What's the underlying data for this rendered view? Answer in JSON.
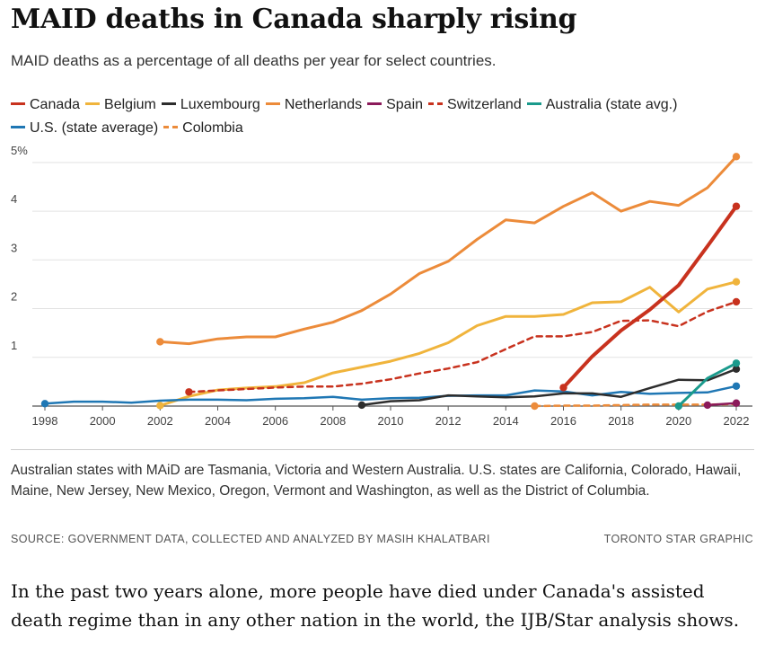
{
  "title": "MAID deaths in Canada sharply rising",
  "subtitle": "MAID deaths as a percentage of all deaths per year for select countries.",
  "legend": [
    {
      "label": "Canada",
      "color": "#c8321e",
      "dashed": false
    },
    {
      "label": "Belgium",
      "color": "#f0b43c",
      "dashed": false
    },
    {
      "label": "Luxembourg",
      "color": "#2d2d2d",
      "dashed": false
    },
    {
      "label": "Netherlands",
      "color": "#ec8b3a",
      "dashed": false
    },
    {
      "label": "Spain",
      "color": "#8b1a5a",
      "dashed": false
    },
    {
      "label": "Switzerland",
      "color": "#c8321e",
      "dashed": true
    },
    {
      "label": "Australia (state avg.)",
      "color": "#1a9a8c",
      "dashed": false
    },
    {
      "label": "U.S. (state average)",
      "color": "#1f77b4",
      "dashed": false
    },
    {
      "label": "Colombia",
      "color": "#ec8b3a",
      "dashed": true
    }
  ],
  "chart_data": {
    "type": "line",
    "xlim": [
      1998,
      2022
    ],
    "ylim": [
      0,
      5.2
    ],
    "x_ticks": [
      "1998",
      "2000",
      "2002",
      "2004",
      "2006",
      "2008",
      "2010",
      "2012",
      "2014",
      "2016",
      "2018",
      "2020",
      "2022"
    ],
    "y_ticks": [
      {
        "value": 1,
        "label": "1"
      },
      {
        "value": 2,
        "label": "2"
      },
      {
        "value": 3,
        "label": "3"
      },
      {
        "value": 4,
        "label": "4"
      },
      {
        "value": 5,
        "label": "5%"
      }
    ],
    "grid": true,
    "series": [
      {
        "name": "Netherlands",
        "color": "#ec8b3a",
        "dashed": false,
        "width": 3,
        "x": [
          2002,
          2003,
          2004,
          2005,
          2006,
          2007,
          2008,
          2009,
          2010,
          2011,
          2012,
          2013,
          2014,
          2015,
          2016,
          2017,
          2018,
          2019,
          2020,
          2021,
          2022
        ],
        "y": [
          1.32,
          1.28,
          1.38,
          1.42,
          1.42,
          1.58,
          1.72,
          1.96,
          2.3,
          2.72,
          2.97,
          3.42,
          3.82,
          3.76,
          4.1,
          4.38,
          4.0,
          4.2,
          4.12,
          4.48,
          5.12
        ],
        "markers": [
          0,
          20
        ]
      },
      {
        "name": "Belgium",
        "color": "#f0b43c",
        "dashed": false,
        "width": 3,
        "x": [
          2002,
          2003,
          2004,
          2005,
          2006,
          2007,
          2008,
          2009,
          2010,
          2011,
          2012,
          2013,
          2014,
          2015,
          2016,
          2017,
          2018,
          2019,
          2020,
          2021,
          2022
        ],
        "y": [
          0.01,
          0.2,
          0.33,
          0.37,
          0.4,
          0.48,
          0.68,
          0.8,
          0.92,
          1.08,
          1.3,
          1.65,
          1.84,
          1.84,
          1.88,
          2.12,
          2.14,
          2.44,
          1.93,
          2.4,
          2.55
        ],
        "markers": [
          0,
          20
        ]
      },
      {
        "name": "Switzerland",
        "color": "#c8321e",
        "dashed": true,
        "width": 2.5,
        "x": [
          2003,
          2004,
          2005,
          2006,
          2007,
          2008,
          2009,
          2010,
          2011,
          2012,
          2013,
          2014,
          2015,
          2016,
          2017,
          2018,
          2019,
          2020,
          2021,
          2022
        ],
        "y": [
          0.29,
          0.32,
          0.35,
          0.38,
          0.4,
          0.4,
          0.46,
          0.55,
          0.67,
          0.77,
          0.9,
          1.17,
          1.43,
          1.43,
          1.52,
          1.75,
          1.76,
          1.64,
          1.94,
          2.14
        ],
        "markers": [
          0,
          19
        ]
      },
      {
        "name": "U.S. (state average)",
        "color": "#1f77b4",
        "dashed": false,
        "width": 2.5,
        "x": [
          1998,
          1999,
          2000,
          2001,
          2002,
          2003,
          2004,
          2005,
          2006,
          2007,
          2008,
          2009,
          2010,
          2011,
          2012,
          2013,
          2014,
          2015,
          2016,
          2017,
          2018,
          2019,
          2020,
          2021,
          2022
        ],
        "y": [
          0.05,
          0.09,
          0.09,
          0.07,
          0.11,
          0.13,
          0.13,
          0.12,
          0.15,
          0.16,
          0.19,
          0.13,
          0.16,
          0.17,
          0.21,
          0.22,
          0.22,
          0.32,
          0.3,
          0.22,
          0.29,
          0.25,
          0.27,
          0.28,
          0.41
        ],
        "markers": [
          0,
          24
        ]
      },
      {
        "name": "Luxembourg",
        "color": "#2d2d2d",
        "dashed": false,
        "width": 2.5,
        "x": [
          2009,
          2010,
          2011,
          2012,
          2013,
          2014,
          2015,
          2016,
          2017,
          2018,
          2019,
          2020,
          2021,
          2022
        ],
        "y": [
          0.02,
          0.1,
          0.12,
          0.22,
          0.2,
          0.18,
          0.2,
          0.26,
          0.26,
          0.19,
          0.37,
          0.54,
          0.53,
          0.76
        ],
        "markers": [
          0,
          13
        ]
      },
      {
        "name": "Colombia",
        "color": "#ec8b3a",
        "dashed": true,
        "width": 2.5,
        "x": [
          2015,
          2016,
          2017,
          2018,
          2019,
          2020,
          2021,
          2022
        ],
        "y": [
          0.0,
          0.01,
          0.01,
          0.02,
          0.03,
          0.03,
          0.03,
          0.04
        ],
        "markers": [
          0
        ]
      },
      {
        "name": "Spain",
        "color": "#8b1a5a",
        "dashed": false,
        "width": 2.5,
        "x": [
          2021,
          2022
        ],
        "y": [
          0.02,
          0.06
        ],
        "markers": [
          0,
          1
        ]
      },
      {
        "name": "Australia (state avg.)",
        "color": "#1a9a8c",
        "dashed": false,
        "width": 3,
        "x": [
          2020,
          2021,
          2022
        ],
        "y": [
          0.0,
          0.57,
          0.88
        ],
        "markers": [
          0,
          2
        ]
      },
      {
        "name": "Canada",
        "color": "#c8321e",
        "dashed": false,
        "width": 4,
        "x": [
          2016,
          2017,
          2018,
          2019,
          2020,
          2021,
          2022
        ],
        "y": [
          0.38,
          1.02,
          1.55,
          1.98,
          2.48,
          3.28,
          4.1
        ],
        "markers": [
          0,
          6
        ]
      }
    ]
  },
  "note": "Australian states with MAiD are Tasmania, Victoria and Western Australia. U.S. states are California, Colorado, Hawaii, Maine, New Jersey, New Mexico, Oregon, Vermont and Washington, as well as the District of Columbia.",
  "source": "SOURCE: GOVERNMENT DATA, COLLECTED AND ANALYZED BY MASIH KHALATBARI",
  "credit": "TORONTO STAR GRAPHIC",
  "body_text": "In the past two years alone, more people have died under Canada's assisted death regime than in any other nation in the world, the IJB/Star analysis shows."
}
